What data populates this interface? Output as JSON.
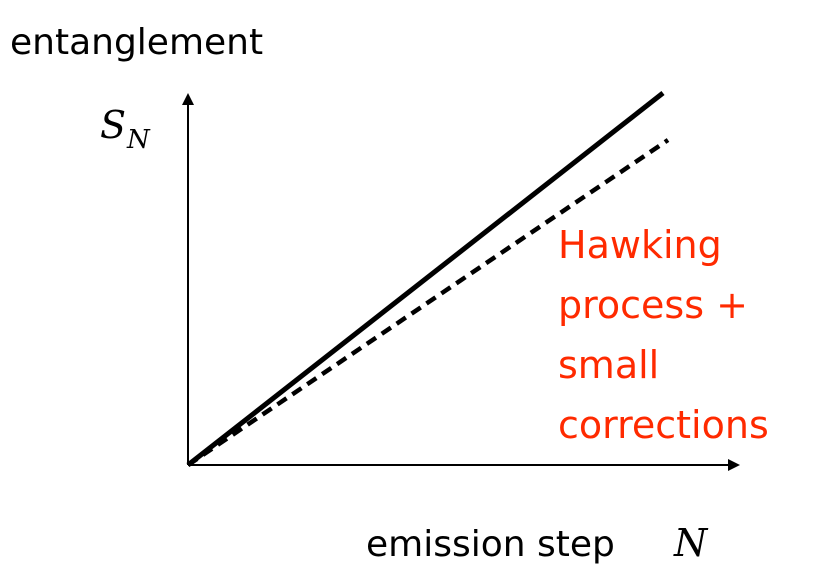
{
  "y_axis": {
    "title": "entanglement",
    "symbol": "S",
    "subscript": "N"
  },
  "x_axis": {
    "title": "emission step",
    "symbol": "N"
  },
  "annotation": {
    "lines": [
      "Hawking",
      "process +",
      "small",
      "corrections"
    ]
  }
}
